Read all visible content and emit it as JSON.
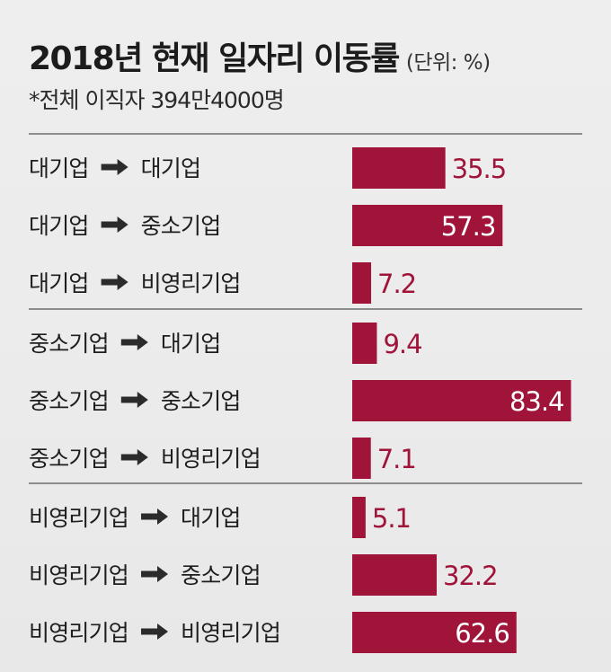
{
  "header": {
    "title": "2018년 현재 일자리 이동률",
    "unit": "(단위: %)",
    "subtitle": "*전체 이직자 394만4000명"
  },
  "colors": {
    "bar": "#a0143a",
    "value_text": "#a0143a",
    "divider": "#555555"
  },
  "arrow_icon": "right-arrow-icon",
  "chart_data": {
    "type": "bar",
    "orientation": "horizontal",
    "title": "2018년 현재 일자리 이동률",
    "unit": "%",
    "grid": false,
    "xlim": [
      0,
      100
    ],
    "groups": [
      {
        "from": "대기업",
        "rows": [
          {
            "from": "대기업",
            "to": "대기업",
            "value": 35.5,
            "label": "35.5"
          },
          {
            "from": "대기업",
            "to": "중소기업",
            "value": 57.3,
            "label": "57.3"
          },
          {
            "from": "대기업",
            "to": "비영리기업",
            "value": 7.2,
            "label": "7.2"
          }
        ]
      },
      {
        "from": "중소기업",
        "rows": [
          {
            "from": "중소기업",
            "to": "대기업",
            "value": 9.4,
            "label": "9.4"
          },
          {
            "from": "중소기업",
            "to": "중소기업",
            "value": 83.4,
            "label": "83.4"
          },
          {
            "from": "중소기업",
            "to": "비영리기업",
            "value": 7.1,
            "label": "7.1"
          }
        ]
      },
      {
        "from": "비영리기업",
        "rows": [
          {
            "from": "비영리기업",
            "to": "대기업",
            "value": 5.1,
            "label": "5.1"
          },
          {
            "from": "비영리기업",
            "to": "중소기업",
            "value": 32.2,
            "label": "32.2"
          },
          {
            "from": "비영리기업",
            "to": "비영리기업",
            "value": 62.6,
            "label": "62.6"
          }
        ]
      }
    ]
  }
}
